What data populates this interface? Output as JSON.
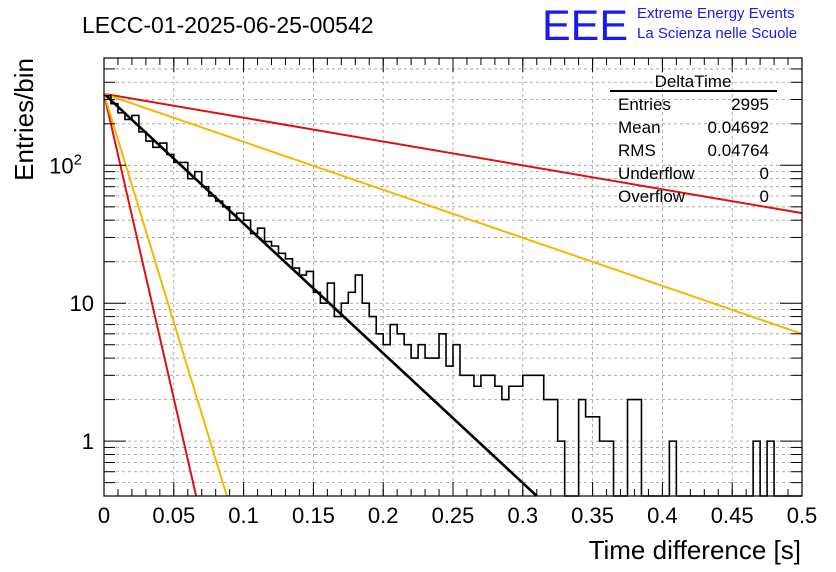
{
  "page": {
    "run_title": "LECC-01-2025-06-25-00542",
    "logo": {
      "letters": "EEE",
      "line1": "Extreme Energy Events",
      "line2": "La Scienza nelle Scuole",
      "color": "#1a1aee"
    }
  },
  "chart_data": {
    "type": "step",
    "title": "",
    "xlabel": "Time difference [s]",
    "ylabel": "Entries/bin",
    "xlim": [
      0,
      0.5
    ],
    "ylim": [
      0.4,
      600
    ],
    "yscale": "log",
    "grid": true,
    "x_ticks": [
      "0",
      "0.05",
      "0.1",
      "0.15",
      "0.2",
      "0.25",
      "0.3",
      "0.35",
      "0.4",
      "0.45",
      "0.5"
    ],
    "y_ticks": [
      {
        "value": 1,
        "label": "1"
      },
      {
        "value": 10,
        "label": "10"
      },
      {
        "value": 100,
        "label": "10",
        "sup": "2"
      }
    ],
    "histogram": {
      "name": "DeltaTime",
      "bin_width": 0.005,
      "color": "#000000",
      "counts": [
        320,
        280,
        240,
        215,
        230,
        175,
        150,
        135,
        145,
        120,
        105,
        105,
        80,
        90,
        70,
        60,
        55,
        50,
        40,
        45,
        40,
        32,
        35,
        28,
        26,
        23,
        21,
        18,
        16,
        17,
        12,
        10,
        14,
        8,
        10,
        12,
        16,
        10,
        8,
        6,
        5,
        7,
        6,
        5,
        4,
        5,
        4,
        4,
        6,
        3.5,
        5,
        3,
        3,
        2.5,
        3,
        3,
        2.5,
        2,
        2.5,
        2.5,
        3,
        3,
        3,
        2,
        2,
        1,
        0.4,
        0.4,
        2,
        1.5,
        1.5,
        1,
        1,
        0.4,
        0.4,
        2,
        2,
        0.4,
        0.4,
        0.4,
        0.4,
        1,
        0.4,
        0.4,
        0.4,
        0.4,
        0.4,
        0.4,
        0.4,
        0.4,
        0.4,
        0.4,
        0.4,
        1,
        0.4,
        1,
        0.4,
        0.4,
        0.4,
        0.4
      ]
    },
    "fits": [
      {
        "color": "#000000",
        "x0": 0,
        "y0": 330,
        "x1": 0.31,
        "y1": 0.4
      },
      {
        "color": "#dd1111",
        "x0": 0,
        "y0": 330,
        "x1": 0.5,
        "y1": 45
      },
      {
        "color": "#f5b800",
        "x0": 0,
        "y0": 330,
        "x1": 0.5,
        "y1": 6
      },
      {
        "color": "#dd1111",
        "x0": 0,
        "y0": 330,
        "x1": 0.066,
        "y1": 0.4
      },
      {
        "color": "#f5b800",
        "x0": 0,
        "y0": 330,
        "x1": 0.088,
        "y1": 0.4
      }
    ],
    "stats": {
      "title": "DeltaTime",
      "rows": [
        {
          "label": "Entries",
          "value": "2995"
        },
        {
          "label": "Mean",
          "value": "0.04692"
        },
        {
          "label": "RMS",
          "value": "0.04764"
        },
        {
          "label": "Underflow",
          "value": "0"
        },
        {
          "label": "Overflow",
          "value": "0"
        }
      ]
    }
  }
}
